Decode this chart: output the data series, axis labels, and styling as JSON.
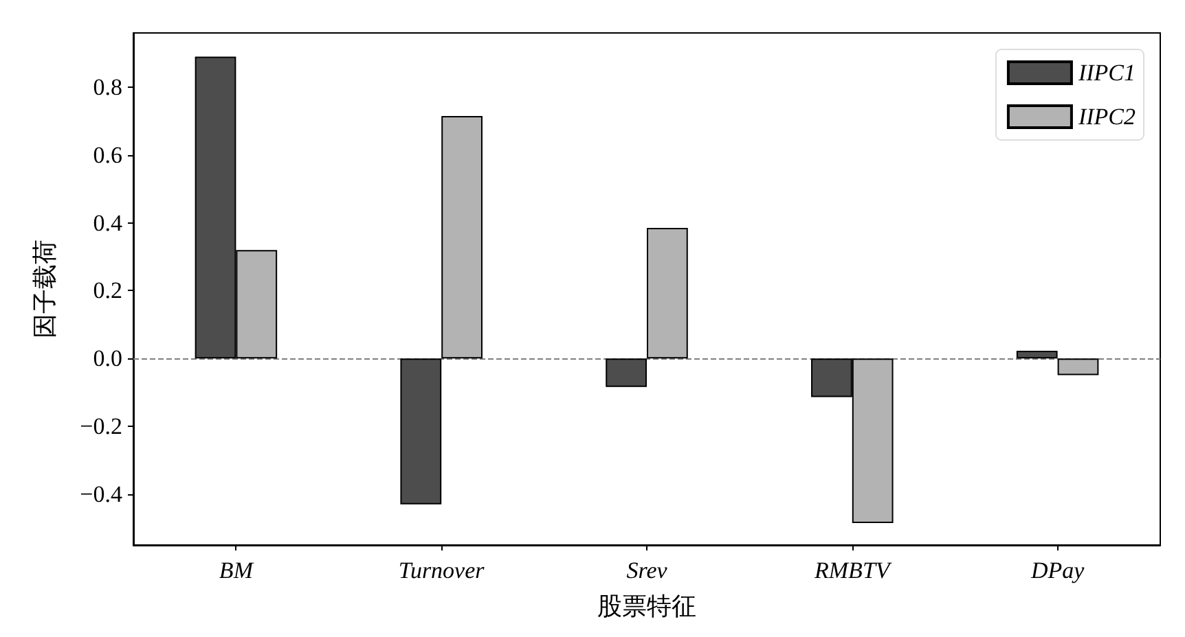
{
  "chart_data": {
    "type": "bar",
    "xlabel": "股票特征",
    "ylabel": "因子载荷",
    "categories": [
      "BM",
      "Turnover",
      "Srev",
      "RMBTV",
      "DPay"
    ],
    "series": [
      {
        "name": "IIPC1",
        "color": "#4d4d4d",
        "values": [
          0.89,
          -0.43,
          -0.084,
          -0.114,
          0.023
        ]
      },
      {
        "name": "IIPC2",
        "color": "#b3b3b3",
        "values": [
          0.32,
          0.715,
          0.385,
          -0.485,
          -0.049
        ]
      }
    ],
    "ylim": [
      -0.55,
      0.96
    ],
    "yticks": [
      -0.4,
      -0.2,
      {
        "value": 0,
        "label": "0.0"
      },
      0.2,
      0.4,
      0.6,
      0.8
    ],
    "ref_lines": [
      {
        "axis": "y",
        "value": 0,
        "color": "#808080",
        "line_style": "dashed"
      }
    ],
    "grid": false,
    "legend": "top right"
  }
}
